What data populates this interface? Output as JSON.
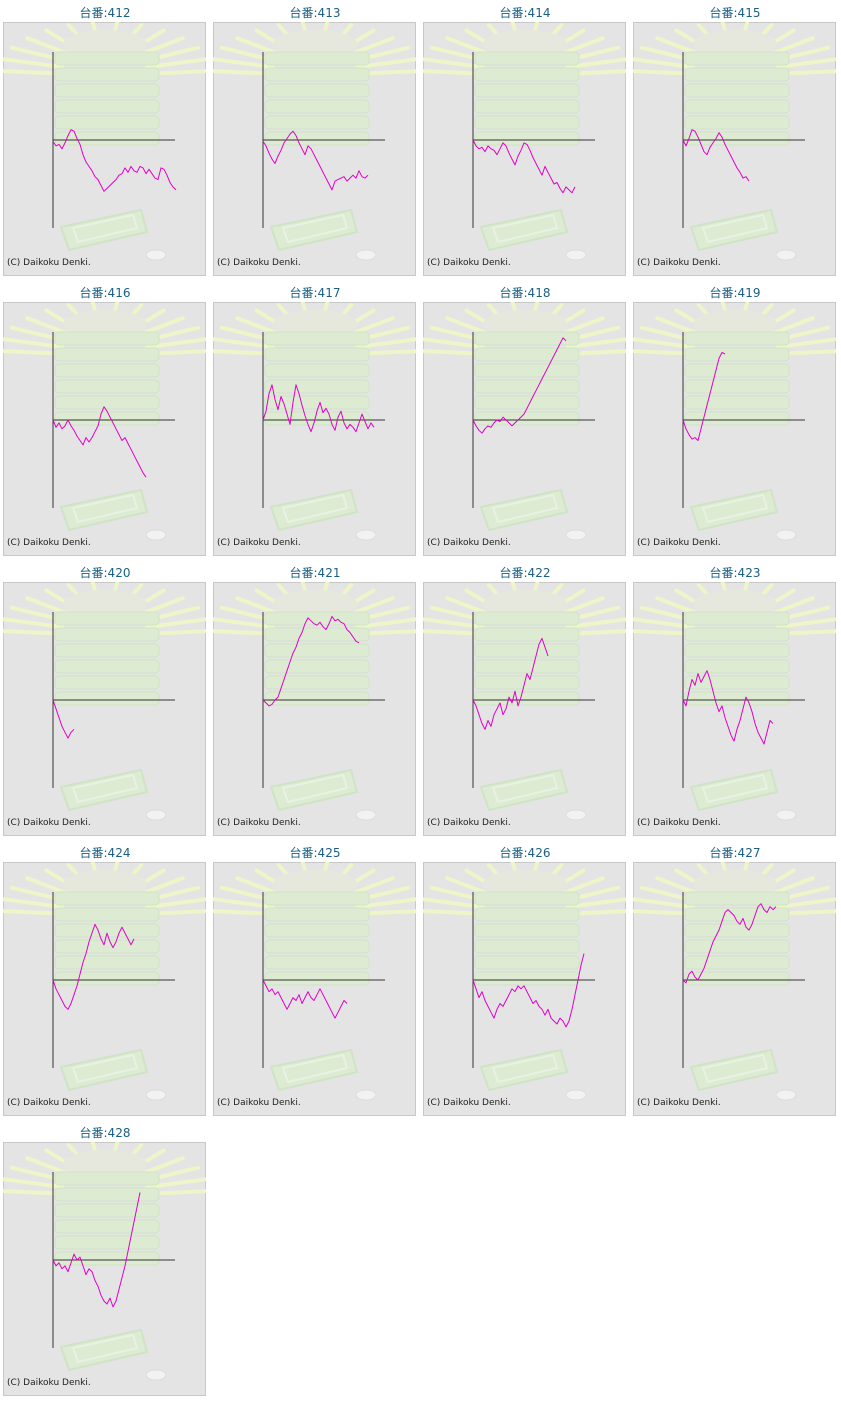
{
  "copyright": "(C) Daikoku Denki.",
  "colors": {
    "line": "#e000c8",
    "axis": "#333333",
    "title": "#1a5f86",
    "panel_bg": "#e4e4e4",
    "panel_border": "#c8c8c8"
  },
  "chart_data": [
    {
      "type": "line",
      "title": "台番:412",
      "y": [
        -50,
        -200,
        -150,
        -300,
        -100,
        150,
        350,
        300,
        50,
        -150,
        -500,
        -750,
        -900,
        -1050,
        -1250,
        -1350,
        -1550,
        -1750,
        -1650,
        -1550,
        -1450,
        -1350,
        -1200,
        -1150,
        -950,
        -1100,
        -900,
        -1050,
        -1100,
        -900,
        -950,
        -1150,
        -1000,
        -1150,
        -1300,
        -1350,
        -950,
        -1000,
        -1200,
        -1450,
        -1600,
        -1700
      ]
    },
    {
      "type": "line",
      "title": "台番:413",
      "y": [
        -50,
        -200,
        -450,
        -650,
        -800,
        -550,
        -350,
        -100,
        50,
        200,
        300,
        150,
        -100,
        -300,
        -500,
        -200,
        -300,
        -500,
        -700,
        -900,
        -1100,
        -1300,
        -1500,
        -1700,
        -1400,
        -1350,
        -1300,
        -1250,
        -1400,
        -1300,
        -1200,
        -1300,
        -1050,
        -1250,
        -1300,
        -1200
      ]
    },
    {
      "type": "line",
      "title": "台番:414",
      "y": [
        0,
        -200,
        -300,
        -250,
        -400,
        -200,
        -300,
        -350,
        -500,
        -300,
        -100,
        -200,
        -450,
        -650,
        -850,
        -550,
        -350,
        -100,
        -150,
        -350,
        -600,
        -800,
        -1000,
        -1200,
        -900,
        -1100,
        -1300,
        -1500,
        -1450,
        -1650,
        -1800,
        -1600,
        -1700,
        -1800,
        -1600
      ]
    },
    {
      "type": "line",
      "title": "台番:415",
      "y": [
        0,
        -200,
        50,
        350,
        300,
        100,
        -150,
        -400,
        -500,
        -250,
        -100,
        50,
        250,
        100,
        -150,
        -350,
        -550,
        -750,
        -950,
        -1100,
        -1300,
        -1250,
        -1400
      ]
    },
    {
      "type": "line",
      "title": "台番:416",
      "y": [
        0,
        -250,
        -100,
        -300,
        -200,
        0,
        -200,
        -350,
        -550,
        -700,
        -850,
        -600,
        -750,
        -600,
        -400,
        -200,
        200,
        450,
        300,
        100,
        -100,
        -300,
        -500,
        -700,
        -600,
        -800,
        -1000,
        -1200,
        -1400,
        -1600,
        -1800,
        -1950
      ]
    },
    {
      "type": "line",
      "title": "台番:417",
      "y": [
        0,
        300,
        900,
        1200,
        700,
        350,
        800,
        550,
        200,
        -150,
        600,
        1200,
        900,
        500,
        150,
        -150,
        -400,
        -100,
        300,
        600,
        250,
        400,
        200,
        -150,
        -350,
        100,
        300,
        -100,
        -300,
        -150,
        -250,
        -400,
        -100,
        200,
        -50,
        -300,
        -100,
        -250
      ]
    },
    {
      "type": "line",
      "title": "台番:418",
      "y": [
        0,
        -200,
        -350,
        -450,
        -300,
        -200,
        -250,
        -100,
        0,
        -50,
        100,
        0,
        -100,
        -200,
        -100,
        0,
        100,
        200,
        400,
        600,
        800,
        1000,
        1200,
        1400,
        1600,
        1800,
        2000,
        2200,
        2400,
        2600,
        2800,
        2700
      ]
    },
    {
      "type": "line",
      "title": "台番:419",
      "y": [
        0,
        -300,
        -500,
        -650,
        -600,
        -700,
        -300,
        100,
        500,
        900,
        1300,
        1700,
        2100,
        2300,
        2250
      ]
    },
    {
      "type": "line",
      "title": "台番:420",
      "y": [
        0,
        -300,
        -600,
        -900,
        -1100,
        -1300,
        -1100,
        -1000
      ]
    },
    {
      "type": "line",
      "title": "台番:421",
      "y": [
        0,
        -100,
        -200,
        -150,
        0,
        100,
        400,
        700,
        1000,
        1300,
        1600,
        1800,
        2100,
        2300,
        2600,
        2800,
        2700,
        2600,
        2550,
        2650,
        2500,
        2400,
        2600,
        2850,
        2700,
        2750,
        2650,
        2600,
        2400,
        2300,
        2150,
        2000,
        1950
      ]
    },
    {
      "type": "line",
      "title": "台番:422",
      "y": [
        0,
        -200,
        -500,
        -800,
        -1000,
        -700,
        -900,
        -500,
        -300,
        -100,
        -500,
        -300,
        100,
        -100,
        300,
        -200,
        100,
        500,
        900,
        700,
        1100,
        1500,
        1900,
        2100,
        1800,
        1500
      ]
    },
    {
      "type": "line",
      "title": "台番:423",
      "y": [
        0,
        -200,
        300,
        700,
        500,
        900,
        600,
        800,
        1000,
        700,
        300,
        -100,
        -400,
        -200,
        -600,
        -900,
        -1200,
        -1400,
        -1000,
        -700,
        -300,
        100,
        -100,
        -400,
        -800,
        -1100,
        -1300,
        -1500,
        -1100,
        -700,
        -800
      ]
    },
    {
      "type": "line",
      "title": "台番:424",
      "y": [
        0,
        -300,
        -500,
        -700,
        -900,
        -1000,
        -800,
        -500,
        -200,
        200,
        600,
        900,
        1300,
        1600,
        1900,
        1700,
        1400,
        1200,
        1600,
        1300,
        1100,
        1300,
        1600,
        1800,
        1600,
        1400,
        1200,
        1400
      ]
    },
    {
      "type": "line",
      "title": "台番:425",
      "y": [
        0,
        -200,
        -400,
        -300,
        -500,
        -400,
        -600,
        -800,
        -1000,
        -800,
        -600,
        -700,
        -500,
        -800,
        -600,
        -400,
        -600,
        -700,
        -500,
        -300,
        -500,
        -700,
        -900,
        -1100,
        -1300,
        -1100,
        -900,
        -700,
        -800
      ]
    },
    {
      "type": "line",
      "title": "台番:426",
      "y": [
        0,
        -300,
        -600,
        -400,
        -700,
        -900,
        -1100,
        -1300,
        -1000,
        -800,
        -900,
        -700,
        -500,
        -300,
        -400,
        -200,
        -300,
        -200,
        -400,
        -600,
        -800,
        -700,
        -900,
        -1000,
        -1200,
        -1000,
        -1300,
        -1400,
        -1500,
        -1300,
        -1400,
        -1600,
        -1400,
        -1000,
        -500,
        0,
        500,
        900
      ]
    },
    {
      "type": "line",
      "title": "台番:427",
      "y": [
        0,
        -100,
        200,
        300,
        100,
        0,
        200,
        400,
        700,
        1000,
        1300,
        1500,
        1700,
        2000,
        2300,
        2400,
        2300,
        2200,
        2000,
        1900,
        2100,
        1800,
        1700,
        1900,
        2200,
        2500,
        2600,
        2400,
        2300,
        2500,
        2400,
        2500
      ]
    },
    {
      "type": "line",
      "title": "台番:428",
      "y": [
        0,
        -200,
        -100,
        -300,
        -200,
        -400,
        -100,
        200,
        0,
        100,
        -200,
        -500,
        -300,
        -400,
        -700,
        -900,
        -1200,
        -1400,
        -1500,
        -1300,
        -1600,
        -1400,
        -1000,
        -600,
        -200,
        300,
        800,
        1300,
        1800,
        2300
      ]
    }
  ]
}
